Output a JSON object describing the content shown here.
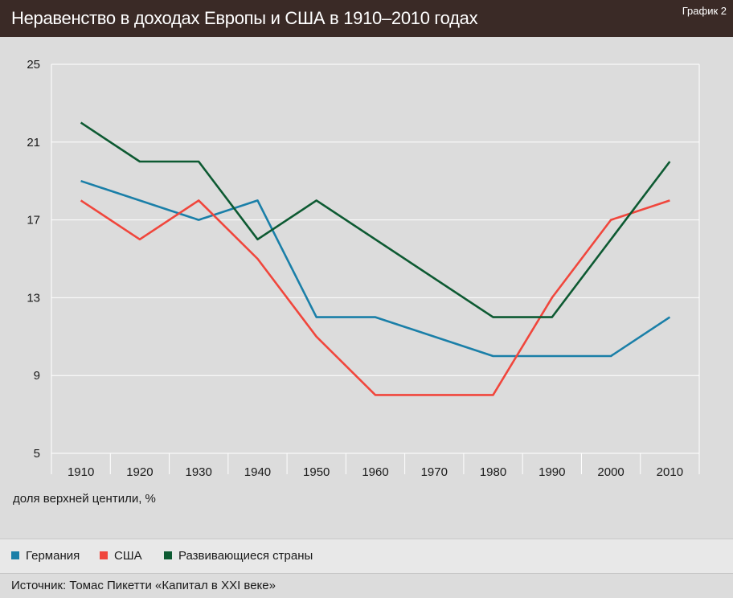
{
  "header": {
    "title": "Неравенство в доходах Европы и США в 1910–2010 годах",
    "tag": "График 2"
  },
  "axis_note": "доля верхней центили, %",
  "source": "Источник: Томас Пикетти «Капитал в XXI веке»",
  "colors": {
    "header_bg": "#3a2a26",
    "germany": "#1a7fa8",
    "usa": "#f0463c",
    "developing": "#0d5a32"
  },
  "chart_data": {
    "type": "line",
    "x": [
      1910,
      1920,
      1930,
      1940,
      1950,
      1960,
      1970,
      1980,
      1990,
      2000,
      2010
    ],
    "xlim": [
      1905,
      2015
    ],
    "ylim": [
      5,
      25
    ],
    "yticks": [
      5,
      9,
      13,
      17,
      21,
      25
    ],
    "xticks": [
      "1910",
      "1920",
      "1930",
      "1940",
      "1950",
      "1960",
      "1970",
      "1980",
      "1990",
      "2000",
      "2010"
    ],
    "xlabel": "",
    "ylabel": "доля верхней центили, %",
    "legend_position": "bottom",
    "grid": true,
    "series": [
      {
        "name": "Германия",
        "color": "#1a7fa8",
        "points": [
          [
            1910,
            19
          ],
          [
            1930,
            17
          ],
          [
            1940,
            18
          ],
          [
            1950,
            12
          ],
          [
            1960,
            12
          ],
          [
            1980,
            10
          ],
          [
            2000,
            10
          ],
          [
            2010,
            12
          ]
        ]
      },
      {
        "name": "США",
        "color": "#f0463c",
        "points": [
          [
            1910,
            18
          ],
          [
            1920,
            16
          ],
          [
            1930,
            18
          ],
          [
            1940,
            15
          ],
          [
            1950,
            11
          ],
          [
            1960,
            8
          ],
          [
            1980,
            8
          ],
          [
            1990,
            13
          ],
          [
            2000,
            17
          ],
          [
            2010,
            18
          ]
        ]
      },
      {
        "name": "Развивающиеся страны",
        "color": "#0d5a32",
        "points": [
          [
            1910,
            22
          ],
          [
            1920,
            20
          ],
          [
            1930,
            20
          ],
          [
            1940,
            16
          ],
          [
            1950,
            18
          ],
          [
            1980,
            12
          ],
          [
            1990,
            12
          ],
          [
            2010,
            20
          ]
        ]
      }
    ]
  }
}
